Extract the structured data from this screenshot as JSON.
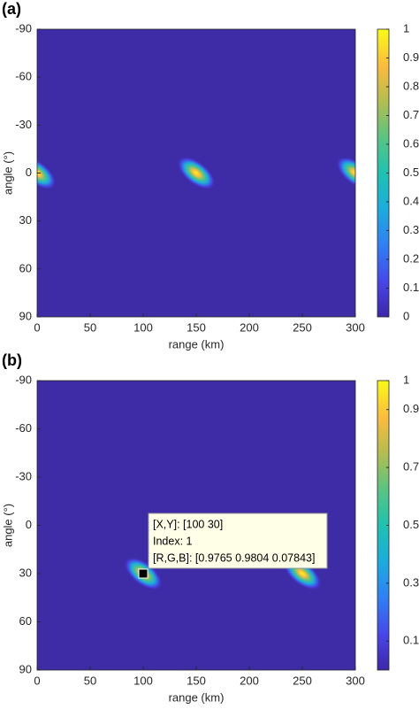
{
  "chart_data": [
    {
      "type": "heatmap",
      "panel_label": "(a)",
      "xlabel": "range (km)",
      "ylabel": "angle (°)",
      "xlim": [
        0,
        300
      ],
      "xticks": [
        0,
        50,
        100,
        150,
        200,
        250,
        300
      ],
      "ylim": [
        -90,
        90
      ],
      "yticks": [
        -90,
        -60,
        -30,
        0,
        30,
        60,
        90
      ],
      "y_direction": "reverse",
      "clim": [
        0,
        1
      ],
      "cticks": [
        0,
        0.1,
        0.2,
        0.3,
        0.4,
        0.5,
        0.6,
        0.7,
        0.8,
        0.9,
        1
      ],
      "colormap": "parula",
      "peaks": [
        {
          "x": 0,
          "y": 0,
          "value": 1
        },
        {
          "x": 150,
          "y": 0,
          "value": 1
        },
        {
          "x": 300,
          "y": 0,
          "value": 1
        }
      ]
    },
    {
      "type": "heatmap",
      "panel_label": "(b)",
      "xlabel": "range (km)",
      "ylabel": "angle (°)",
      "xlim": [
        0,
        300
      ],
      "xticks": [
        0,
        50,
        100,
        150,
        200,
        250,
        300
      ],
      "ylim": [
        -90,
        90
      ],
      "yticks": [
        -90,
        -60,
        -30,
        0,
        30,
        60,
        90
      ],
      "y_direction": "reverse",
      "clim": [
        0,
        1
      ],
      "cticks": [
        0.1,
        0.3,
        0.5,
        0.7,
        0.9,
        1
      ],
      "colormap": "parula",
      "peaks": [
        {
          "x": 100,
          "y": 30,
          "value": 1
        },
        {
          "x": 250,
          "y": 30,
          "value": 1
        }
      ],
      "datatip": {
        "x": 100,
        "y": 30,
        "lines": [
          "[X,Y]: [100 30]",
          "Index: 1",
          "[R,G,B]: [0.9765 0.9804 0.07843]"
        ]
      }
    }
  ]
}
